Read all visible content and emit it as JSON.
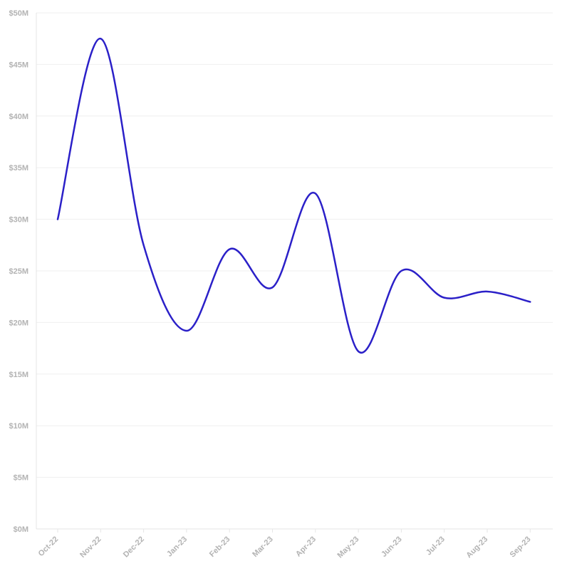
{
  "chart_data": {
    "type": "line",
    "title": "",
    "xlabel": "",
    "ylabel": "",
    "x": [
      "Oct-22",
      "Nov-22",
      "Dec-22",
      "Jan-23",
      "Feb-23",
      "Mar-23",
      "Apr-23",
      "May-23",
      "Jun-23",
      "Jul-23",
      "Aug-23",
      "Sep-23"
    ],
    "series": [
      {
        "values": [
          30.0,
          47.5,
          27.5,
          19.2,
          27.1,
          23.4,
          32.5,
          17.2,
          25.0,
          22.4,
          23.0,
          22.0
        ],
        "color": "#2b20c8"
      }
    ],
    "ylim": [
      0,
      50
    ],
    "yticks": [
      {
        "value": 0,
        "label": "$0M"
      },
      {
        "value": 5,
        "label": "$5M"
      },
      {
        "value": 10,
        "label": "$10M"
      },
      {
        "value": 15,
        "label": "$15M"
      },
      {
        "value": 20,
        "label": "$20M"
      },
      {
        "value": 25,
        "label": "$25M"
      },
      {
        "value": 30,
        "label": "$30M"
      },
      {
        "value": 35,
        "label": "$35M"
      },
      {
        "value": 40,
        "label": "$40M"
      },
      {
        "value": 45,
        "label": "$45M"
      },
      {
        "value": 50,
        "label": "$50M"
      }
    ],
    "grid": true,
    "legend": "none",
    "line_style": "smooth"
  }
}
